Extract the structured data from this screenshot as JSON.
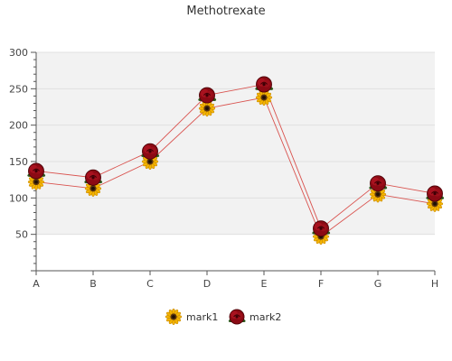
{
  "chart_data": {
    "type": "line",
    "title": "Methotrexate",
    "xlabel": "",
    "ylabel": "",
    "categories": [
      "A",
      "B",
      "C",
      "D",
      "E",
      "F",
      "G",
      "H"
    ],
    "ylim": [
      0,
      300
    ],
    "yticks": [
      50,
      100,
      150,
      200,
      250,
      300
    ],
    "grid": "horizontal bands",
    "legend": "bottom-center",
    "series": [
      {
        "name": "mark1",
        "marker": "sunflower-icon",
        "color": "#d9534f",
        "values": [
          122,
          113,
          150,
          223,
          238,
          47,
          105,
          92
        ]
      },
      {
        "name": "mark2",
        "marker": "rose-icon",
        "color": "#d9534f",
        "values": [
          137,
          128,
          164,
          241,
          256,
          58,
          120,
          106
        ]
      }
    ]
  }
}
